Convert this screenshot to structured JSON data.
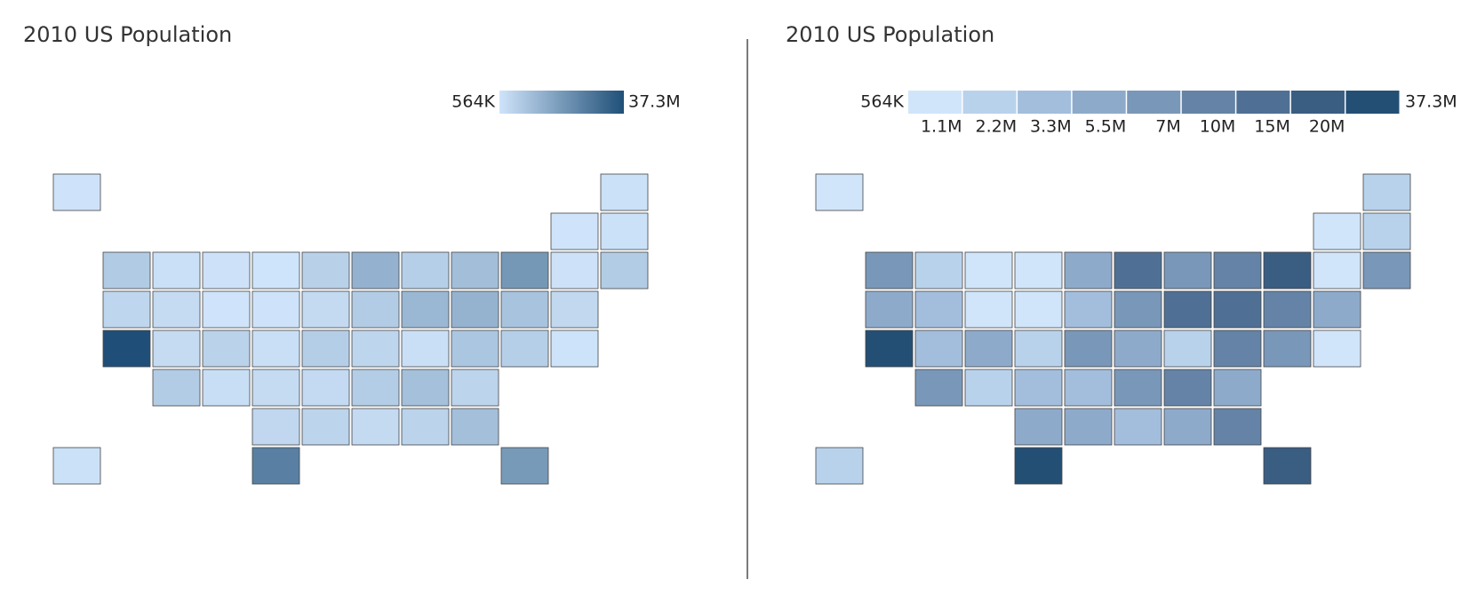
{
  "chart_data": [
    {
      "type": "choropleth",
      "title": "2010 US Population",
      "scale": "continuous",
      "values": [
        4779736,
        710231,
        6392017,
        2915918,
        37253956,
        5029196,
        3574097,
        897934,
        18801310,
        9687653,
        1360301,
        1567582,
        12830632,
        6483802,
        3046355,
        2853118,
        4339367,
        4533372,
        1328361,
        5773552,
        6547629,
        9883640,
        5303925,
        2967297,
        5988927,
        989415,
        1826341,
        2700551,
        1316470,
        8791894,
        2059179,
        19378102,
        9535483,
        672591,
        11536504,
        3751351,
        3831074,
        12702379,
        1052567,
        4625364,
        814180,
        6346105,
        25145561,
        2763885,
        625741,
        8001024,
        6724540,
        1852994,
        5686986,
        563626
      ],
      "colors": [
        "#cfe4fa",
        "#1f4f78"
      ],
      "colorbar_ticks": [
        {
          "value": 563626,
          "label": "564K"
        },
        {
          "value": 37253956,
          "label": "37.3M"
        }
      ]
    },
    {
      "type": "choropleth",
      "title": "2010 US Population",
      "scale": "discrete",
      "values": [
        4779736,
        710231,
        6392017,
        2915918,
        37253956,
        5029196,
        3574097,
        897934,
        18801310,
        9687653,
        1360301,
        1567582,
        12830632,
        6483802,
        3046355,
        2853118,
        4339367,
        4533372,
        1328361,
        5773552,
        6547629,
        9883640,
        5303925,
        2967297,
        5988927,
        989415,
        1826341,
        2700551,
        1316470,
        8791894,
        2059179,
        19378102,
        9535483,
        672591,
        11536504,
        3751351,
        3831074,
        12702379,
        1052567,
        4625364,
        814180,
        6346105,
        25145561,
        2763885,
        625741,
        8001024,
        6724540,
        1852994,
        5686986,
        563626
      ],
      "colors": [
        "#d1e5fa",
        "#b9d2ec",
        "#a3bedc",
        "#8eaacb",
        "#7997b8",
        "#6483a6",
        "#4f7094",
        "#3a5d82",
        "#234f75"
      ],
      "colorbar_ticks": [
        {
          "value": 563626,
          "label": "564K"
        },
        {
          "value": 1100000,
          "label": "1.1M"
        },
        {
          "value": 2200000,
          "label": "2.2M"
        },
        {
          "value": 3300000,
          "label": "3.3M"
        },
        {
          "value": 5500000,
          "label": "5.5M"
        },
        {
          "value": 7000000,
          "label": "7M"
        },
        {
          "value": 10000000,
          "label": "10M"
        },
        {
          "value": 15000000,
          "label": "15M"
        },
        {
          "value": 20000000,
          "label": "20M"
        },
        {
          "value": 37253956,
          "label": "37.3M"
        }
      ]
    }
  ]
}
